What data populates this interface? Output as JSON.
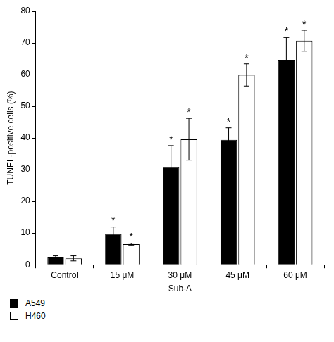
{
  "chart_data": {
    "type": "bar",
    "x_label": "Sub-A",
    "y_label": "TUNEL-positive cells (%)",
    "categories": [
      "Control",
      "15 μM",
      "30 μM",
      "45 μM",
      "60 μM"
    ],
    "series": [
      {
        "name": "A549",
        "color": "#000000",
        "values": [
          2.5,
          9.7,
          30.8,
          39.4,
          64.7
        ],
        "errors": [
          0.3,
          2.2,
          6.8,
          3.8,
          7.0
        ],
        "significance": [
          null,
          "*",
          "*",
          "*",
          "*"
        ]
      },
      {
        "name": "H460",
        "color": "#ffffff",
        "values": [
          2.0,
          6.5,
          39.6,
          59.9,
          70.7
        ],
        "errors": [
          0.8,
          0.3,
          6.6,
          3.5,
          3.3
        ],
        "significance": [
          null,
          "*",
          "*",
          "*",
          "*"
        ]
      }
    ],
    "ylim": [
      0,
      80
    ],
    "yticks": [
      0,
      10,
      20,
      30,
      40,
      50,
      60,
      70,
      80
    ],
    "grid": false,
    "legend": "bottom-left"
  }
}
